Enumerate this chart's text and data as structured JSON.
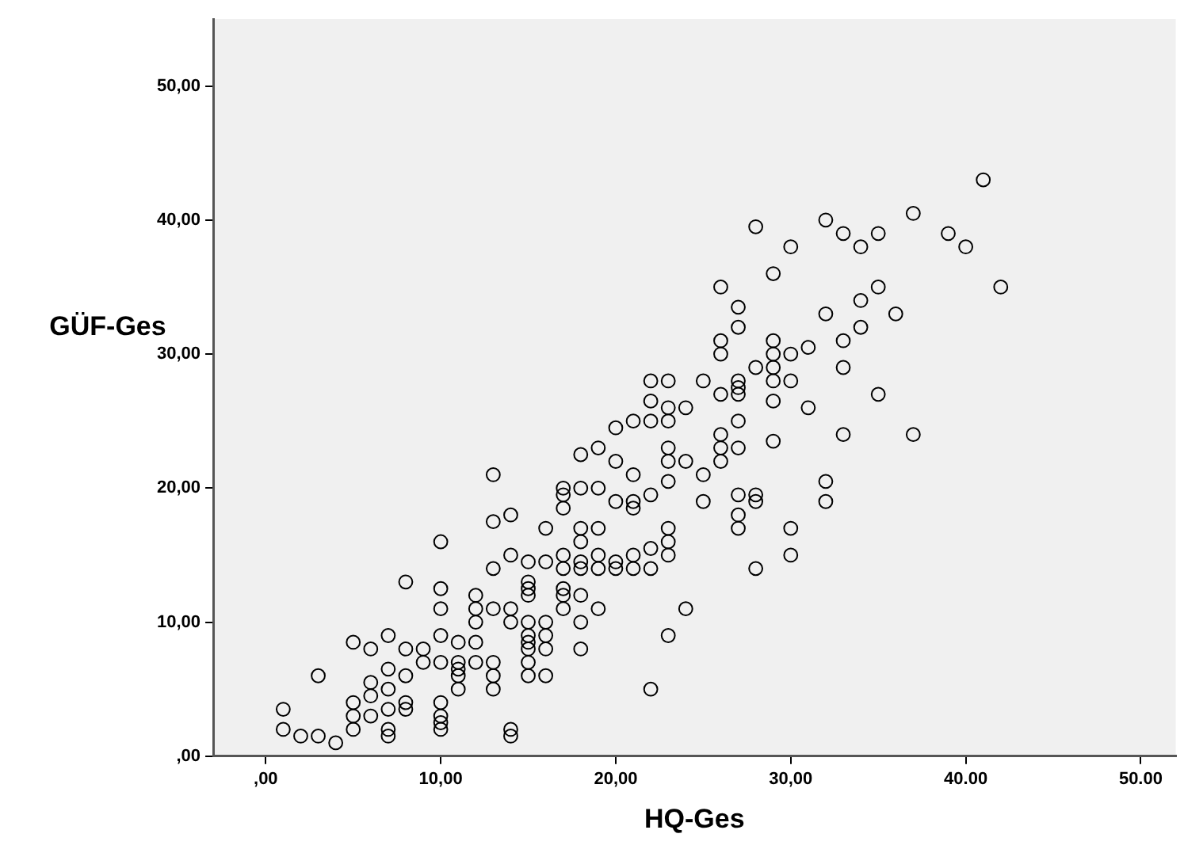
{
  "chart_data": {
    "type": "scatter",
    "xlabel": "HQ-Ges",
    "ylabel": "GÜF-Ges",
    "marker": "circle",
    "legend": false,
    "grid": false,
    "xlim": [
      -3,
      52
    ],
    "ylim": [
      0,
      55
    ],
    "xticks": [
      {
        "value": 0,
        "label": ",00"
      },
      {
        "value": 10,
        "label": "10,00"
      },
      {
        "value": 20,
        "label": "20,00"
      },
      {
        "value": 30,
        "label": "30,00"
      },
      {
        "value": 40,
        "label": "40.00"
      },
      {
        "value": 50,
        "label": "50.00"
      }
    ],
    "yticks": [
      {
        "value": 0,
        "label": ",00"
      },
      {
        "value": 10,
        "label": "10,00"
      },
      {
        "value": 20,
        "label": "20,00"
      },
      {
        "value": 30,
        "label": "30,00"
      },
      {
        "value": 40,
        "label": "40,00"
      },
      {
        "value": 50,
        "label": "50,00"
      }
    ],
    "series": [
      {
        "color": "#000000",
        "x": [
          1,
          1,
          2,
          3,
          3,
          4,
          5,
          5,
          5,
          5,
          6,
          6,
          6,
          6,
          7,
          7,
          7,
          7,
          7,
          7,
          8,
          8,
          8,
          8,
          8,
          9,
          9,
          10,
          10,
          10,
          10,
          10,
          10,
          10,
          10,
          10,
          11,
          11,
          11,
          11,
          11,
          12,
          12,
          12,
          12,
          12,
          13,
          13,
          13,
          13,
          13,
          13,
          13,
          14,
          14,
          14,
          14,
          14,
          14,
          15,
          15,
          15,
          15,
          15,
          15,
          15,
          15,
          15,
          15,
          16,
          16,
          16,
          16,
          16,
          16,
          17,
          17,
          17,
          17,
          17,
          17,
          17,
          17,
          18,
          18,
          18,
          18,
          18,
          18,
          18,
          18,
          18,
          19,
          19,
          19,
          19,
          19,
          19,
          20,
          20,
          20,
          20,
          20,
          21,
          21,
          21,
          21,
          21,
          21,
          22,
          22,
          22,
          22,
          22,
          22,
          22,
          23,
          23,
          23,
          23,
          23,
          23,
          23,
          23,
          23,
          23,
          24,
          24,
          24,
          25,
          25,
          25,
          26,
          26,
          26,
          26,
          26,
          26,
          26,
          27,
          27,
          27,
          27,
          27,
          27,
          27,
          27,
          27,
          27,
          28,
          28,
          28,
          28,
          28,
          29,
          29,
          29,
          29,
          29,
          29,
          29,
          30,
          30,
          30,
          30,
          30,
          31,
          31,
          32,
          32,
          32,
          32,
          33,
          33,
          33,
          33,
          34,
          34,
          34,
          35,
          35,
          35,
          36,
          37,
          37,
          39,
          40,
          41,
          42
        ],
        "values": [
          3.5,
          2,
          1.5,
          1.5,
          6,
          1,
          8.5,
          4,
          3,
          2,
          8,
          5.5,
          4.5,
          3,
          9,
          6.5,
          5,
          3.5,
          2,
          1.5,
          13,
          8,
          6,
          4,
          3.5,
          8,
          7,
          16,
          12.5,
          11,
          9,
          7,
          4,
          3,
          2.5,
          2,
          8.5,
          7,
          6.5,
          6,
          5,
          12,
          11,
          10,
          8.5,
          7,
          21,
          17.5,
          14,
          11,
          7,
          6,
          5,
          18,
          15,
          11,
          10,
          2,
          1.5,
          14.5,
          13,
          12.5,
          12,
          10,
          9,
          8.5,
          8,
          7,
          6,
          17,
          14.5,
          10,
          9,
          8,
          6,
          20,
          19.5,
          18.5,
          15,
          14,
          12.5,
          12,
          11,
          22.5,
          20,
          17,
          16,
          14.5,
          14,
          12,
          10,
          8,
          23,
          20,
          17,
          15,
          14,
          11,
          24.5,
          22,
          19,
          14.5,
          14,
          25,
          21,
          19,
          18.5,
          15,
          14,
          28,
          26.5,
          25,
          19.5,
          15.5,
          14,
          5,
          28,
          26,
          25,
          23,
          22,
          20.5,
          17,
          16,
          15,
          9,
          26,
          22,
          11,
          28,
          21,
          19,
          35,
          31,
          30,
          27,
          24,
          23,
          22,
          33.5,
          32,
          28,
          27.5,
          27,
          25,
          23,
          19.5,
          18,
          17,
          39.5,
          29,
          19.5,
          19,
          14,
          36,
          31,
          30,
          29,
          28,
          26.5,
          23.5,
          38,
          30,
          28,
          17,
          15,
          30.5,
          26,
          40,
          33,
          20.5,
          19,
          39,
          31,
          29,
          24,
          38,
          34,
          32,
          39,
          35,
          27,
          33,
          40.5,
          24,
          39,
          38,
          43,
          35
        ]
      }
    ]
  }
}
